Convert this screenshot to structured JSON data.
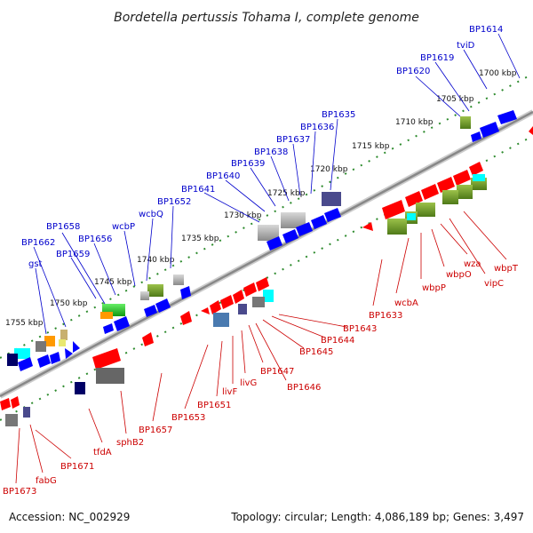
{
  "title": "Bordetella pertussis Tohama I, complete genome",
  "footer": {
    "accession": "Accession: NC_002929",
    "summary": "Topology: circular; Length: 4,086,189 bp; Genes: 3,497"
  },
  "colors": {
    "forward_label": "#0000cc",
    "reverse_label": "#cc0000",
    "backbone": "#888888",
    "ruler": "#2e8b2e"
  },
  "ruler_labels": [
    "1700 kbp",
    "1705 kbp",
    "1710 kbp",
    "1715 kbp",
    "1720 kbp",
    "1725 kbp",
    "1730 kbp",
    "1735 kbp",
    "1740 kbp",
    "1745 kbp",
    "1750 kbp",
    "1755 kbp"
  ],
  "forward_genes": [
    "BP1614",
    "tviD",
    "BP1619",
    "BP1620",
    "BP1635",
    "BP1636",
    "BP1637",
    "BP1638",
    "BP1639",
    "BP1640",
    "BP1641",
    "BP1652",
    "wcbQ",
    "wcbP",
    "BP1656",
    "BP1658",
    "BP1662",
    "BP1659",
    "gst"
  ],
  "reverse_genes": [
    "BP1673",
    "fabG",
    "BP1671",
    "tfdA",
    "sphB2",
    "BP1657",
    "BP1653",
    "BP1651",
    "livF",
    "livG",
    "BP1647",
    "BP1646",
    "BP1645",
    "BP1644",
    "BP1643",
    "BP1633",
    "wcbA",
    "wbpP",
    "wbpO",
    "wza",
    "vipC",
    "wbpT"
  ]
}
